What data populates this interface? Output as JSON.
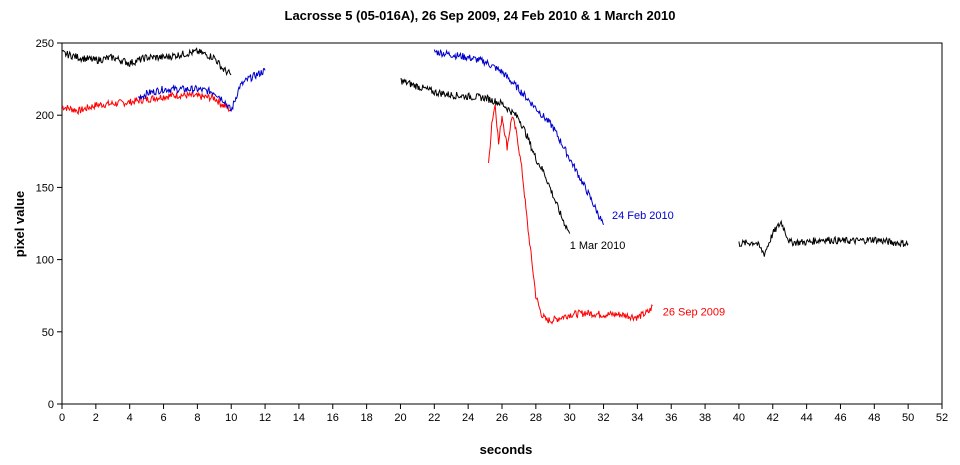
{
  "chart_data": {
    "type": "line",
    "title": "Lacrosse 5 (05-016A), 26 Sep 2009, 24 Feb 2010 & 1 March 2010",
    "xlabel": "seconds",
    "ylabel": "pixel value",
    "xlim": [
      0,
      52
    ],
    "ylim": [
      0,
      250
    ],
    "xticks": [
      0,
      2,
      4,
      6,
      8,
      10,
      12,
      14,
      16,
      18,
      20,
      22,
      24,
      26,
      28,
      30,
      32,
      34,
      36,
      38,
      40,
      42,
      44,
      46,
      48,
      50,
      52
    ],
    "yticks": [
      0,
      50,
      100,
      150,
      200,
      250
    ],
    "grid": false,
    "colors": {
      "sep": "#ff0000",
      "feb": "#0000cc",
      "mar": "#000000"
    },
    "series": [
      {
        "name": "26 Sep 2009",
        "color": "#ff0000",
        "label": "26 Sep 2009",
        "label_at": [
          35.5,
          64
        ],
        "segments": [
          [
            [
              0,
              206
            ],
            [
              1,
              203
            ],
            [
              2,
              207
            ],
            [
              3,
              208
            ],
            [
              4,
              209
            ],
            [
              5,
              211
            ],
            [
              6,
              213
            ],
            [
              7,
              214
            ],
            [
              8,
              213
            ],
            [
              9,
              212
            ],
            [
              9.5,
              207
            ],
            [
              9.8,
              205
            ],
            [
              10,
              203
            ]
          ],
          [
            [
              25.2,
              165
            ],
            [
              25.4,
              195
            ],
            [
              25.6,
              208
            ],
            [
              25.8,
              180
            ],
            [
              26.0,
              200
            ],
            [
              26.3,
              178
            ],
            [
              26.6,
              200
            ],
            [
              26.9,
              185
            ],
            [
              27.2,
              160
            ],
            [
              27.5,
              125
            ],
            [
              27.8,
              95
            ],
            [
              28.0,
              75
            ],
            [
              28.3,
              63
            ],
            [
              28.6,
              58
            ],
            [
              29,
              58
            ],
            [
              30,
              62
            ],
            [
              31,
              63
            ],
            [
              32,
              62
            ],
            [
              33,
              62
            ],
            [
              34,
              60
            ],
            [
              34.7,
              64
            ],
            [
              34.9,
              68
            ]
          ]
        ]
      },
      {
        "name": "24 Feb 2010",
        "color": "#0000cc",
        "label": "24 Feb 2010",
        "label_at": [
          32.5,
          131
        ],
        "segments": [
          [
            [
              4.5,
              212
            ],
            [
              5,
              215
            ],
            [
              6,
              218
            ],
            [
              7,
              218
            ],
            [
              8,
              218
            ],
            [
              9,
              216
            ],
            [
              9.6,
              210
            ],
            [
              10.0,
              203
            ],
            [
              10.5,
              220
            ],
            [
              11,
              225
            ],
            [
              11.5,
              228
            ],
            [
              12,
              231
            ]
          ],
          [
            [
              22,
              244
            ],
            [
              23,
              242
            ],
            [
              24,
              240
            ],
            [
              25,
              237
            ],
            [
              26,
              230
            ],
            [
              27,
              218
            ],
            [
              28,
              205
            ],
            [
              29,
              192
            ],
            [
              30,
              170
            ],
            [
              31,
              148
            ],
            [
              31.5,
              136
            ],
            [
              32,
              124
            ]
          ]
        ]
      },
      {
        "name": "1 Mar 2010",
        "color": "#000000",
        "label": "1 Mar 2010",
        "label_at": [
          30,
          110
        ],
        "segments": [
          [
            [
              0,
              243
            ],
            [
              1,
              240
            ],
            [
              2,
              238
            ],
            [
              3,
              240
            ],
            [
              4,
              236
            ],
            [
              5,
              240
            ],
            [
              6,
              240
            ],
            [
              7,
              242
            ],
            [
              8,
              244
            ],
            [
              9,
              240
            ],
            [
              9.5,
              232
            ],
            [
              10,
              228
            ]
          ],
          [
            [
              20,
              224
            ],
            [
              21,
              220
            ],
            [
              22,
              216
            ],
            [
              23,
              214
            ],
            [
              24,
              213
            ],
            [
              25,
              212
            ],
            [
              26,
              208
            ],
            [
              27,
              198
            ],
            [
              27.5,
              185
            ],
            [
              28,
              170
            ],
            [
              28.5,
              160
            ],
            [
              29,
              145
            ],
            [
              29.5,
              130
            ],
            [
              30,
              118
            ]
          ],
          [
            [
              40,
              111
            ],
            [
              41,
              112
            ],
            [
              41.5,
              104
            ],
            [
              42,
              118
            ],
            [
              42.5,
              126
            ],
            [
              43,
              112
            ],
            [
              44,
              112
            ],
            [
              45,
              114
            ],
            [
              46,
              113
            ],
            [
              47,
              113
            ],
            [
              48,
              114
            ],
            [
              49,
              112
            ],
            [
              50,
              111
            ]
          ]
        ]
      }
    ]
  }
}
